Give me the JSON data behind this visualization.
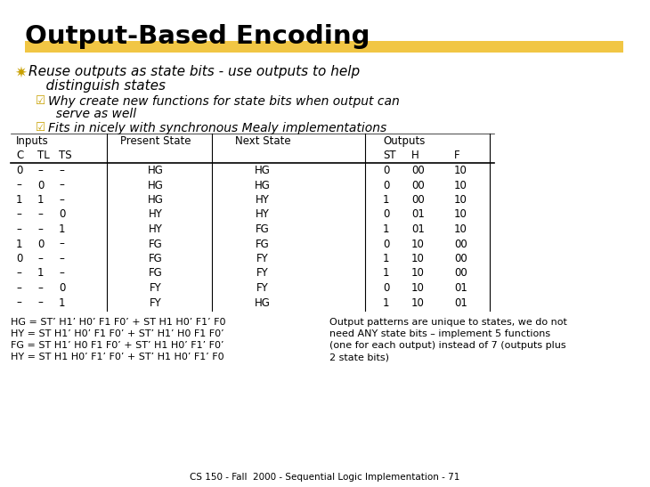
{
  "title": "Output-Based Encoding",
  "bg_color": "#ffffff",
  "title_color": "#000000",
  "highlight_color": "#f0c030",
  "bullet_z_color": "#c8a000",
  "bullet_y_color": "#c8a000",
  "table_data": [
    [
      "0",
      "–",
      "–",
      "HG",
      "HG",
      "0",
      "00",
      "10"
    ],
    [
      "–",
      "0",
      "–",
      "HG",
      "HG",
      "0",
      "00",
      "10"
    ],
    [
      "1",
      "1",
      "–",
      "HG",
      "HY",
      "1",
      "00",
      "10"
    ],
    [
      "–",
      "–",
      "0",
      "HY",
      "HY",
      "0",
      "01",
      "10"
    ],
    [
      "–",
      "–",
      "1",
      "HY",
      "FG",
      "1",
      "01",
      "10"
    ],
    [
      "1",
      "0",
      "–",
      "FG",
      "FG",
      "0",
      "10",
      "00"
    ],
    [
      "0",
      "–",
      "–",
      "FG",
      "FY",
      "1",
      "10",
      "00"
    ],
    [
      "–",
      "1",
      "–",
      "FG",
      "FY",
      "1",
      "10",
      "00"
    ],
    [
      "–",
      "–",
      "0",
      "FY",
      "FY",
      "0",
      "10",
      "01"
    ],
    [
      "–",
      "–",
      "1",
      "FY",
      "HG",
      "1",
      "10",
      "01"
    ]
  ],
  "eq_left_lines": [
    "HG = ST’ H1’ H0’ F1 F0’ + ST H1 H0’ F1’ F0",
    "HY = ST H1’ H0’ F1 F0’ + ST’ H1’ H0 F1 F0’",
    "FG = ST H1’ H0 F1 F0’ + ST’ H1 H0’ F1’ F0’",
    "HY = ST H1 H0’ F1’ F0’ + ST’ H1 H0’ F1’ F0"
  ],
  "eq_right_lines": [
    "Output patterns are unique to states, we do not",
    "need ANY state bits – implement 5 functions",
    "(one for each output) instead of 7 (outputs plus",
    "2 state bits)"
  ],
  "footer": "CS 150 - Fall  2000 - Sequential Logic Implementation - 71"
}
